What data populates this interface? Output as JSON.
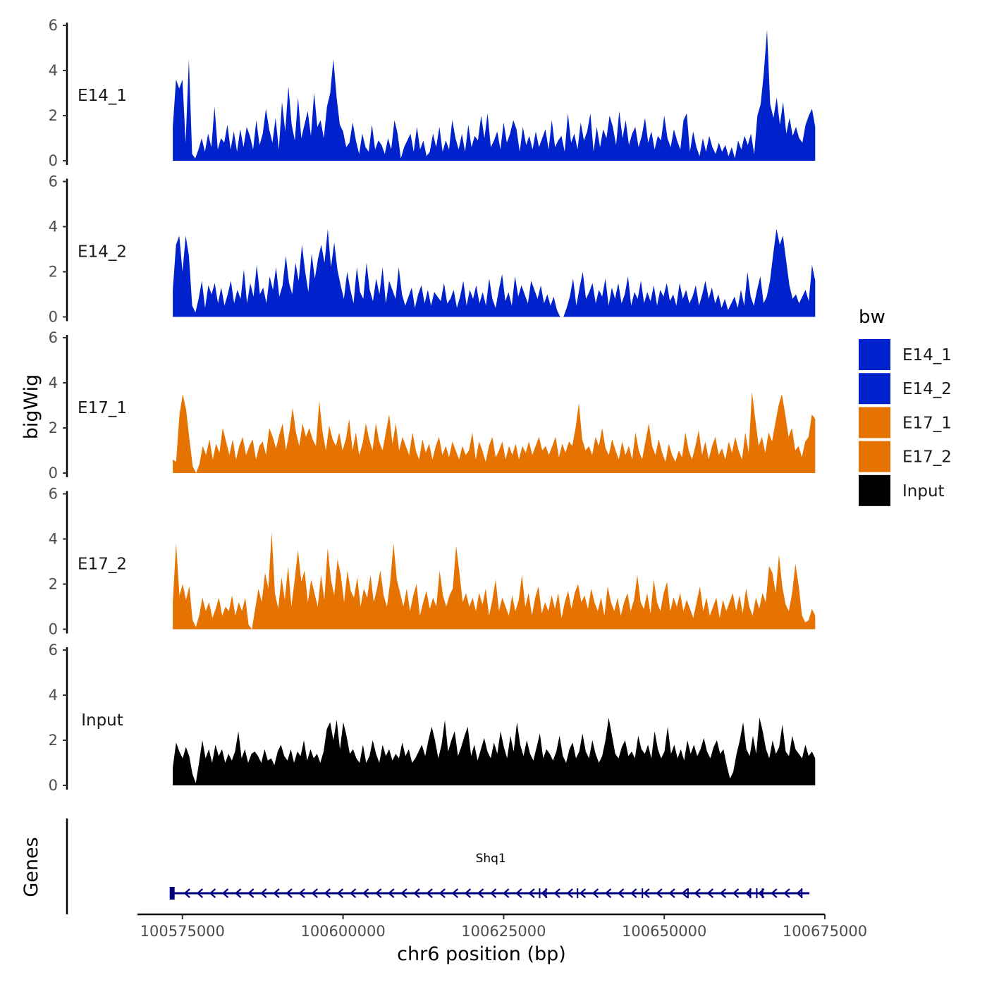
{
  "chart_data": {
    "type": "area",
    "ylabel": "bigWig",
    "xlabel": "chr6 position (bp)",
    "ylim": [
      0,
      6
    ],
    "y_ticks": [
      "0",
      "2",
      "4",
      "6"
    ],
    "xlim": [
      100568000,
      100675000
    ],
    "x_ticks": [
      "100575000",
      "100600000",
      "100625000",
      "100650000",
      "100675000"
    ],
    "data_range": [
      100573500,
      100673500
    ],
    "tracks": [
      {
        "name": "E14_1",
        "color": "#0022CC",
        "values": [
          1.5,
          3.6,
          3.2,
          3.6,
          0.8,
          4.5,
          0.3,
          0.1,
          0.5,
          1.0,
          0.4,
          1.2,
          0.6,
          2.4,
          0.5,
          1.0,
          0.8,
          1.6,
          0.5,
          1.3,
          0.4,
          1.4,
          0.6,
          1.5,
          1.1,
          0.5,
          1.8,
          0.7,
          1.2,
          2.3,
          1.4,
          0.8,
          1.9,
          0.5,
          2.6,
          1.3,
          3.3,
          1.6,
          0.9,
          2.8,
          1.0,
          1.6,
          2.2,
          1.1,
          3.0,
          1.5,
          1.8,
          1.0,
          2.4,
          3.0,
          4.5,
          2.8,
          1.6,
          1.3,
          0.6,
          0.8,
          1.7,
          0.9,
          0.3,
          1.2,
          0.6,
          0.4,
          1.6,
          0.5,
          0.9,
          0.7,
          0.3,
          1.0,
          0.5,
          1.8,
          1.2,
          0.1,
          0.6,
          0.9,
          1.2,
          0.4,
          1.5,
          0.5,
          0.9,
          0.2,
          0.4,
          1.2,
          0.6,
          1.5,
          0.4,
          0.9,
          0.5,
          1.8,
          1.0,
          0.5,
          1.2,
          0.4,
          1.6,
          0.6,
          1.1,
          0.9,
          2.0,
          1.0,
          2.1,
          0.6,
          0.9,
          1.3,
          0.5,
          1.7,
          0.8,
          1.2,
          1.8,
          1.4,
          0.4,
          1.5,
          0.7,
          1.1,
          0.5,
          1.3,
          0.6,
          1.0,
          1.4,
          0.5,
          1.8,
          0.6,
          0.9,
          1.1,
          0.4,
          2.1,
          0.8,
          1.2,
          0.5,
          1.7,
          0.9,
          1.3,
          2.1,
          0.4,
          1.5,
          0.6,
          1.4,
          1.0,
          2.0,
          1.5,
          0.7,
          2.2,
          1.0,
          1.8,
          0.7,
          1.2,
          1.5,
          0.6,
          1.1,
          1.9,
          0.8,
          1.3,
          0.5,
          1.1,
          0.9,
          2.0,
          1.0,
          0.6,
          1.4,
          0.9,
          0.5,
          1.8,
          2.1,
          0.4,
          1.3,
          0.6,
          0.2,
          1.0,
          0.4,
          1.1,
          0.6,
          0.3,
          0.8,
          0.4,
          0.7,
          0.2,
          0.6,
          0.1,
          0.9,
          0.5,
          1.1,
          0.7,
          1.2,
          0.3,
          2.0,
          2.5,
          3.9,
          5.8,
          2.5,
          1.9,
          2.8,
          1.6,
          2.6,
          1.2,
          1.9,
          1.1,
          1.5,
          1.0,
          0.8,
          1.6,
          2.0,
          2.3,
          1.5
        ]
      },
      {
        "name": "E14_2",
        "color": "#0022CC",
        "values": [
          1.2,
          3.2,
          3.6,
          2.0,
          3.6,
          2.7,
          0.5,
          0.2,
          0.8,
          1.6,
          0.4,
          1.4,
          1.0,
          1.5,
          0.6,
          1.3,
          0.5,
          1.0,
          1.6,
          0.6,
          1.2,
          0.8,
          2.1,
          0.6,
          1.5,
          0.9,
          2.3,
          1.0,
          1.3,
          0.6,
          1.8,
          1.2,
          2.2,
          0.9,
          1.4,
          2.7,
          1.5,
          1.0,
          2.4,
          1.6,
          3.2,
          2.0,
          1.1,
          2.8,
          1.7,
          2.6,
          3.2,
          2.4,
          3.9,
          2.2,
          3.3,
          2.1,
          1.4,
          0.8,
          2.0,
          1.2,
          0.6,
          2.2,
          1.1,
          0.8,
          2.4,
          1.2,
          0.7,
          1.7,
          1.0,
          2.2,
          0.6,
          1.6,
          1.2,
          0.8,
          2.2,
          1.0,
          0.5,
          0.9,
          1.3,
          0.4,
          1.0,
          1.4,
          0.6,
          1.2,
          0.5,
          1.1,
          0.9,
          0.7,
          1.5,
          0.6,
          0.8,
          1.2,
          0.4,
          0.9,
          1.6,
          0.5,
          1.2,
          0.8,
          1.4,
          0.6,
          1.1,
          0.5,
          1.7,
          0.8,
          0.4,
          1.2,
          1.9,
          0.7,
          1.1,
          0.5,
          1.8,
          0.9,
          1.4,
          1.0,
          0.6,
          1.6,
          1.2,
          0.8,
          1.4,
          0.6,
          1.0,
          0.5,
          0.9,
          0.3,
          0.0,
          0.0,
          0.4,
          0.9,
          1.7,
          0.5,
          1.3,
          2.0,
          0.8,
          1.1,
          1.5,
          0.6,
          1.2,
          0.9,
          1.7,
          0.5,
          1.3,
          0.8,
          1.5,
          0.6,
          1.0,
          1.8,
          0.5,
          1.1,
          0.8,
          1.6,
          0.6,
          1.1,
          0.7,
          1.4,
          0.5,
          1.2,
          0.9,
          1.5,
          0.7,
          1.0,
          0.5,
          1.5,
          0.8,
          1.2,
          0.6,
          0.9,
          1.4,
          0.5,
          1.0,
          1.6,
          0.8,
          1.3,
          0.6,
          1.0,
          0.4,
          0.8,
          0.3,
          0.6,
          0.9,
          0.4,
          1.2,
          0.5,
          2.0,
          0.9,
          0.5,
          1.2,
          1.8,
          0.6,
          0.9,
          1.6,
          2.8,
          3.9,
          3.2,
          3.6,
          2.5,
          1.4,
          0.8,
          1.0,
          0.6,
          0.9,
          1.2,
          0.7,
          2.3,
          1.6
        ]
      },
      {
        "name": "E17_1",
        "color": "#E67300",
        "values": [
          0.6,
          0.5,
          2.6,
          3.5,
          2.8,
          1.5,
          0.3,
          0.0,
          0.4,
          1.2,
          0.8,
          1.5,
          0.6,
          1.3,
          0.9,
          2.0,
          1.4,
          0.8,
          1.5,
          0.6,
          1.2,
          1.6,
          0.8,
          1.2,
          1.5,
          0.6,
          1.2,
          1.4,
          0.8,
          2.0,
          1.6,
          1.1,
          1.7,
          2.2,
          1.0,
          1.8,
          2.9,
          1.8,
          1.2,
          2.2,
          1.6,
          2.0,
          1.5,
          1.2,
          3.2,
          1.8,
          1.0,
          2.1,
          1.5,
          1.2,
          1.8,
          1.0,
          1.5,
          2.4,
          1.0,
          1.8,
          0.8,
          1.3,
          2.2,
          1.5,
          1.0,
          2.2,
          1.4,
          1.0,
          1.8,
          2.6,
          1.3,
          2.2,
          1.0,
          1.6,
          1.2,
          0.8,
          1.8,
          1.0,
          0.6,
          1.5,
          0.9,
          1.3,
          0.6,
          1.2,
          1.6,
          0.8,
          1.2,
          0.7,
          1.4,
          1.0,
          0.6,
          1.2,
          0.8,
          1.0,
          1.8,
          0.6,
          1.4,
          1.0,
          0.5,
          1.2,
          1.6,
          0.7,
          1.0,
          1.4,
          0.6,
          1.2,
          0.8,
          1.3,
          0.6,
          1.2,
          0.9,
          1.4,
          0.8,
          1.2,
          1.6,
          1.0,
          1.2,
          0.8,
          1.2,
          1.6,
          0.7,
          1.3,
          0.9,
          1.4,
          1.2,
          2.0,
          3.1,
          1.5,
          1.0,
          1.2,
          0.8,
          1.6,
          1.2,
          2.0,
          1.1,
          0.8,
          1.5,
          1.0,
          0.6,
          1.4,
          0.8,
          1.2,
          0.6,
          1.8,
          1.0,
          0.6,
          1.4,
          2.2,
          1.2,
          0.8,
          1.5,
          0.9,
          0.5,
          1.3,
          0.8,
          0.5,
          1.0,
          0.7,
          1.8,
          1.0,
          0.6,
          1.2,
          1.9,
          0.8,
          1.4,
          0.6,
          1.2,
          1.6,
          0.8,
          1.1,
          0.6,
          1.4,
          0.9,
          1.6,
          1.0,
          0.6,
          1.8,
          0.9,
          3.6,
          2.4,
          1.2,
          1.6,
          0.9,
          1.8,
          1.4,
          2.2,
          3.0,
          3.5,
          2.6,
          1.6,
          2.0,
          1.0,
          1.2,
          0.7,
          1.4,
          1.6,
          2.6,
          2.4
        ]
      },
      {
        "name": "E17_2",
        "color": "#E67300",
        "values": [
          1.2,
          3.8,
          1.5,
          2.0,
          1.3,
          1.9,
          0.4,
          0.1,
          0.6,
          1.4,
          0.8,
          1.2,
          0.5,
          0.9,
          1.4,
          0.6,
          1.0,
          0.8,
          1.5,
          0.6,
          1.2,
          0.8,
          1.4,
          0.2,
          0.0,
          0.9,
          1.8,
          1.2,
          2.5,
          1.8,
          4.3,
          1.6,
          0.9,
          2.3,
          1.3,
          2.8,
          1.0,
          2.2,
          3.5,
          2.1,
          2.6,
          1.2,
          2.2,
          1.6,
          1.0,
          2.4,
          1.3,
          3.6,
          2.2,
          1.5,
          3.1,
          2.4,
          1.2,
          2.6,
          1.7,
          1.4,
          2.3,
          1.0,
          1.8,
          1.4,
          2.4,
          1.2,
          1.8,
          2.6,
          1.5,
          1.0,
          2.1,
          3.8,
          2.2,
          1.6,
          1.0,
          1.8,
          0.8,
          1.5,
          2.0,
          0.6,
          1.2,
          1.7,
          0.9,
          1.4,
          1.0,
          2.6,
          1.5,
          1.0,
          1.5,
          1.8,
          3.7,
          2.5,
          1.2,
          1.6,
          1.0,
          1.4,
          0.8,
          1.6,
          1.1,
          1.8,
          0.6,
          1.3,
          2.2,
          0.8,
          1.4,
          1.0,
          0.6,
          1.5,
          0.8,
          1.3,
          2.4,
          1.0,
          1.6,
          0.6,
          1.4,
          1.9,
          0.7,
          1.2,
          0.8,
          1.5,
          0.9,
          1.6,
          0.5,
          1.2,
          1.7,
          0.9,
          1.6,
          2.0,
          1.2,
          1.5,
          0.9,
          1.8,
          1.2,
          0.8,
          1.4,
          0.6,
          1.9,
          1.2,
          0.8,
          1.4,
          0.6,
          1.2,
          1.6,
          0.8,
          1.3,
          2.4,
          1.2,
          0.9,
          1.6,
          0.7,
          2.2,
          1.2,
          0.8,
          1.6,
          2.1,
          0.8,
          1.4,
          1.0,
          1.6,
          0.8,
          1.3,
          0.9,
          0.5,
          1.2,
          1.9,
          0.8,
          1.4,
          0.6,
          1.0,
          1.4,
          0.5,
          1.3,
          0.8,
          1.2,
          1.6,
          0.8,
          1.5,
          0.7,
          1.8,
          1.0,
          0.6,
          1.4,
          0.9,
          1.6,
          1.2,
          2.8,
          2.5,
          1.6,
          3.3,
          1.9,
          1.1,
          0.8,
          1.6,
          2.9,
          1.9,
          0.6,
          0.3,
          0.4,
          0.9,
          0.6
        ]
      },
      {
        "name": "Input",
        "color": "#000000",
        "values": [
          0.8,
          1.9,
          1.5,
          1.2,
          1.7,
          1.3,
          0.5,
          0.1,
          1.0,
          2.0,
          1.2,
          1.6,
          1.0,
          1.8,
          1.3,
          1.6,
          1.0,
          1.4,
          1.1,
          1.5,
          2.4,
          1.2,
          1.6,
          1.0,
          1.4,
          1.5,
          1.3,
          1.0,
          1.6,
          1.1,
          1.2,
          0.9,
          1.5,
          1.8,
          1.3,
          1.1,
          1.6,
          1.0,
          1.5,
          1.3,
          2.0,
          1.1,
          1.6,
          1.2,
          1.4,
          1.0,
          1.5,
          2.5,
          2.8,
          2.0,
          2.9,
          1.6,
          2.8,
          2.2,
          1.4,
          1.6,
          1.2,
          1.0,
          1.8,
          1.0,
          1.3,
          2.0,
          1.4,
          1.0,
          1.8,
          1.3,
          1.6,
          1.1,
          1.4,
          1.2,
          1.9,
          1.3,
          1.6,
          1.0,
          1.2,
          1.5,
          1.8,
          1.3,
          2.0,
          2.6,
          2.0,
          1.2,
          1.8,
          2.9,
          1.5,
          2.0,
          2.4,
          1.3,
          1.7,
          2.2,
          2.6,
          1.3,
          1.8,
          1.1,
          1.6,
          2.1,
          1.5,
          1.2,
          1.9,
          1.4,
          2.4,
          1.7,
          1.2,
          2.2,
          1.5,
          2.8,
          1.8,
          1.3,
          2.0,
          1.4,
          1.1,
          1.7,
          2.3,
          1.2,
          1.6,
          1.4,
          1.1,
          1.5,
          2.2,
          1.3,
          1.0,
          1.6,
          1.9,
          1.2,
          1.5,
          2.3,
          1.5,
          1.2,
          2.0,
          1.4,
          1.0,
          1.3,
          2.0,
          3.0,
          2.2,
          1.4,
          1.2,
          1.7,
          2.0,
          1.3,
          1.5,
          1.2,
          2.2,
          1.6,
          1.4,
          1.8,
          1.2,
          2.4,
          1.6,
          1.2,
          1.5,
          2.6,
          1.4,
          1.8,
          1.2,
          1.6,
          1.1,
          2.0,
          1.4,
          1.8,
          1.3,
          1.6,
          2.1,
          1.5,
          1.2,
          1.7,
          2.0,
          1.4,
          1.6,
          0.9,
          0.3,
          0.6,
          1.4,
          2.0,
          2.8,
          1.6,
          1.3,
          2.2,
          1.4,
          3.0,
          2.4,
          1.6,
          1.2,
          2.0,
          1.4,
          1.7,
          2.7,
          1.5,
          1.3,
          2.2,
          1.6,
          1.4,
          1.2,
          1.8,
          1.3,
          1.5,
          1.2
        ]
      }
    ],
    "legend": {
      "title": "bw",
      "position": "right",
      "entries": [
        {
          "label": "E14_1",
          "color": "#0022CC"
        },
        {
          "label": "E14_2",
          "color": "#0022CC"
        },
        {
          "label": "E17_1",
          "color": "#E67300"
        },
        {
          "label": "E17_2",
          "color": "#E67300"
        },
        {
          "label": "Input",
          "color": "#000000"
        }
      ]
    },
    "genes": {
      "panel_label": "Genes",
      "color": "#000080",
      "items": [
        {
          "name": "Shq1",
          "start": 100573400,
          "end": 100672600,
          "strand": "-",
          "exon_starts": [
            100573400,
            100630600,
            100631600,
            100636500,
            100646600,
            100653700,
            100663400,
            100664400,
            100665300,
            100671400
          ]
        }
      ]
    }
  }
}
